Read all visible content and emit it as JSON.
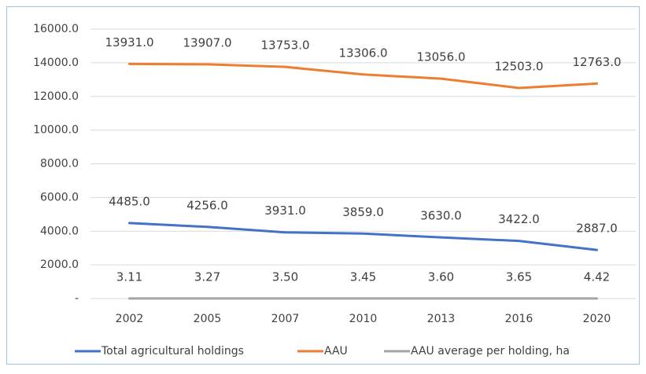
{
  "chart_data": {
    "type": "line",
    "categories": [
      "2002",
      "2005",
      "2007",
      "2010",
      "2013",
      "2016",
      "2020"
    ],
    "series": [
      {
        "name": "Total agricultural holdings",
        "color": "#4472c4",
        "values": [
          4485,
          4256,
          3931,
          3859,
          3630,
          3422,
          2887
        ],
        "value_labels": [
          "4485.0",
          "4256.0",
          "3931.0",
          "3859.0",
          "3630.0",
          "3422.0",
          "2887.0"
        ]
      },
      {
        "name": "AAU",
        "color": "#ed7d31",
        "values": [
          13931,
          13907,
          13753,
          13306,
          13056,
          12503,
          12763
        ],
        "value_labels": [
          "13931.0",
          "13907.0",
          "13753.0",
          "13306.0",
          "13056.0",
          "12503.0",
          "12763.0"
        ]
      },
      {
        "name": "AAU average per holding, ha",
        "color": "#a5a5a5",
        "values": [
          3.11,
          3.27,
          3.5,
          3.45,
          3.6,
          3.65,
          4.42
        ],
        "value_labels": [
          "3.11",
          "3.27",
          "3.50",
          "3.45",
          "3.60",
          "3.65",
          "4.42"
        ]
      }
    ],
    "ylim": [
      0,
      16000
    ],
    "yticks": [
      {
        "value": 0,
        "label": "-"
      },
      {
        "value": 2000,
        "label": "2000.0"
      },
      {
        "value": 4000,
        "label": "4000.0"
      },
      {
        "value": 6000,
        "label": "6000.0"
      },
      {
        "value": 8000,
        "label": "8000.0"
      },
      {
        "value": 10000,
        "label": "10000.0"
      },
      {
        "value": 12000,
        "label": "12000.0"
      },
      {
        "value": 14000,
        "label": "14000.0"
      },
      {
        "value": 16000,
        "label": "16000.0"
      }
    ],
    "grid": true,
    "legend": "bottom"
  }
}
